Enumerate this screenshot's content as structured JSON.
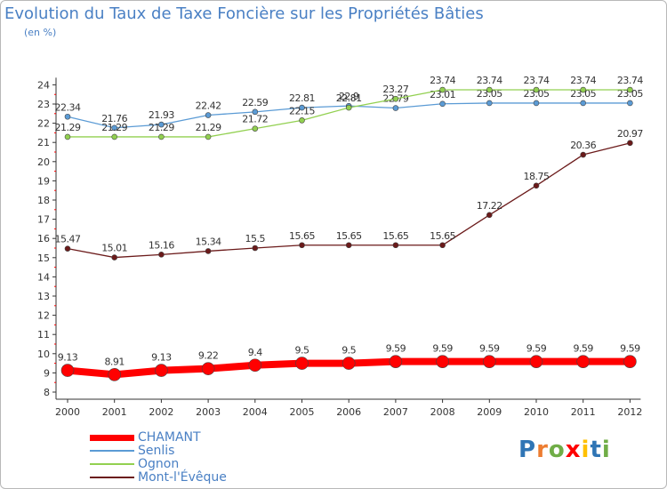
{
  "title": "Evolution du Taux de Taxe Foncière sur les Propriétés Bâties",
  "unit_label": "(en %)",
  "logo_text": "Proxiti",
  "chart_data": {
    "type": "line",
    "title": "Evolution du Taux de Taxe Foncière sur les Propriétés Bâties",
    "ylabel": "(en %)",
    "xlabel": "",
    "x": [
      "2000",
      "2001",
      "2002",
      "2003",
      "2004",
      "2005",
      "2006",
      "2007",
      "2008",
      "2009",
      "2010",
      "2011",
      "2012"
    ],
    "ylim": [
      8,
      24
    ],
    "yticks": [
      "8",
      "9",
      "10",
      "11",
      "12",
      "13",
      "14",
      "15",
      "16",
      "17",
      "18",
      "19",
      "20",
      "21",
      "22",
      "23",
      "24"
    ],
    "grid": false,
    "legend_position": "bottom-left",
    "series": [
      {
        "name": "CHAMANT",
        "color": "#ff0000",
        "values": [
          9.13,
          8.91,
          9.13,
          9.22,
          9.4,
          9.5,
          9.5,
          9.59,
          9.59,
          9.59,
          9.59,
          9.59,
          9.59
        ],
        "labels": [
          "9.13",
          "8.91",
          "9.13",
          "9.22",
          "9.4",
          "9.5",
          "9.5",
          "9.59",
          "9.59",
          "9.59",
          "9.59",
          "9.59",
          "9.59"
        ]
      },
      {
        "name": "Senlis",
        "color": "#5b9bd5",
        "values": [
          22.34,
          21.76,
          21.93,
          22.42,
          22.59,
          22.81,
          22.9,
          22.79,
          23.01,
          23.05,
          23.05,
          23.05,
          23.05
        ],
        "labels": [
          "22.34",
          "21.76",
          "21.93",
          "22.42",
          "22.59",
          "22.81",
          "22.9",
          "22.79",
          "23.01",
          "23.05",
          "23.05",
          "23.05",
          "23.05"
        ]
      },
      {
        "name": "Ognon",
        "color": "#92d050",
        "values": [
          21.29,
          21.29,
          21.29,
          21.29,
          21.72,
          22.15,
          22.81,
          23.27,
          23.74,
          23.74,
          23.74,
          23.74,
          23.74
        ],
        "labels": [
          "21.29",
          "21.29",
          "21.29",
          "21.29",
          "21.72",
          "22.15",
          "22.81",
          "23.27",
          "23.74",
          "23.74",
          "23.74",
          "23.74",
          "23.74"
        ]
      },
      {
        "name": "Mont-l'Évêque",
        "color": "#6b1a1a",
        "values": [
          15.47,
          15.01,
          15.16,
          15.34,
          15.5,
          15.65,
          15.65,
          15.65,
          15.65,
          17.22,
          18.75,
          20.36,
          20.97
        ],
        "labels": [
          "15.47",
          "15.01",
          "15.16",
          "15.34",
          "15.5",
          "15.65",
          "15.65",
          "15.65",
          "15.65",
          "17.22",
          "18.75",
          "20.36",
          "20.97"
        ]
      }
    ]
  }
}
